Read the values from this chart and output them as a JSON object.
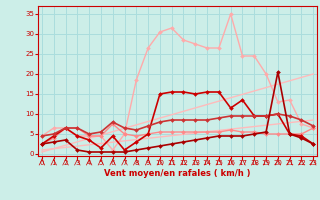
{
  "background_color": "#cceee8",
  "grid_color": "#aadddd",
  "xlabel": "Vent moyen/en rafales ( km/h )",
  "xlabel_color": "#cc0000",
  "tick_color": "#cc0000",
  "ylim": [
    -0.5,
    37
  ],
  "xlim": [
    -0.3,
    23.3
  ],
  "yticks": [
    0,
    5,
    10,
    15,
    20,
    25,
    30,
    35
  ],
  "xticks": [
    0,
    1,
    2,
    3,
    4,
    5,
    6,
    7,
    8,
    9,
    10,
    11,
    12,
    13,
    14,
    15,
    16,
    17,
    18,
    19,
    20,
    21,
    22,
    23
  ],
  "lines": [
    {
      "x": [
        0,
        23
      ],
      "y": [
        0.5,
        20.0
      ],
      "color": "#ffbbbb",
      "lw": 1.0,
      "marker": null,
      "ls": "-"
    },
    {
      "x": [
        0,
        23
      ],
      "y": [
        1.0,
        8.5
      ],
      "color": "#ffbbbb",
      "lw": 1.0,
      "marker": null,
      "ls": "-"
    },
    {
      "x": [
        0,
        1,
        2,
        3,
        4,
        5,
        6,
        7,
        8,
        9,
        10,
        11,
        12,
        13,
        14,
        15,
        16,
        17,
        18,
        19,
        20,
        21,
        22,
        23
      ],
      "y": [
        4.5,
        6.5,
        6.5,
        4.5,
        4.5,
        4.5,
        1.0,
        5.0,
        18.5,
        26.5,
        30.5,
        31.5,
        28.5,
        27.5,
        26.5,
        26.5,
        35.0,
        24.5,
        24.5,
        20.0,
        13.0,
        13.5,
        7.5,
        6.5
      ],
      "color": "#ffaaaa",
      "lw": 1.0,
      "marker": "D",
      "markersize": 2.0,
      "ls": "-"
    },
    {
      "x": [
        0,
        1,
        2,
        3,
        4,
        5,
        6,
        7,
        8,
        9,
        10,
        11,
        12,
        13,
        14,
        15,
        16,
        17,
        18,
        19,
        20,
        21,
        22,
        23
      ],
      "y": [
        2.5,
        4.0,
        6.5,
        6.5,
        4.5,
        4.5,
        7.5,
        5.0,
        4.5,
        5.0,
        5.5,
        5.5,
        5.5,
        5.5,
        5.5,
        5.5,
        6.0,
        5.5,
        5.5,
        5.0,
        5.0,
        5.0,
        5.0,
        6.5
      ],
      "color": "#ff8888",
      "lw": 1.0,
      "marker": "D",
      "markersize": 2.0,
      "ls": "-"
    },
    {
      "x": [
        0,
        1,
        2,
        3,
        4,
        5,
        6,
        7,
        8,
        9,
        10,
        11,
        12,
        13,
        14,
        15,
        16,
        17,
        18,
        19,
        20,
        21,
        22,
        23
      ],
      "y": [
        2.5,
        4.5,
        6.5,
        4.5,
        3.5,
        1.5,
        4.5,
        1.0,
        3.0,
        5.0,
        15.0,
        15.5,
        15.5,
        15.0,
        15.5,
        15.5,
        11.5,
        13.5,
        9.5,
        9.5,
        10.0,
        5.0,
        4.5,
        2.5
      ],
      "color": "#cc0000",
      "lw": 1.2,
      "marker": "D",
      "markersize": 2.0,
      "ls": "-"
    },
    {
      "x": [
        0,
        1,
        2,
        3,
        4,
        5,
        6,
        7,
        8,
        9,
        10,
        11,
        12,
        13,
        14,
        15,
        16,
        17,
        18,
        19,
        20,
        21,
        22,
        23
      ],
      "y": [
        4.5,
        5.0,
        6.5,
        6.5,
        5.0,
        5.5,
        8.0,
        6.5,
        6.0,
        7.0,
        8.0,
        8.5,
        8.5,
        8.5,
        8.5,
        9.0,
        9.5,
        9.5,
        9.5,
        9.5,
        10.0,
        9.5,
        8.5,
        7.0
      ],
      "color": "#cc3333",
      "lw": 1.2,
      "marker": "D",
      "markersize": 2.0,
      "ls": "-"
    },
    {
      "x": [
        0,
        1,
        2,
        3,
        4,
        5,
        6,
        7,
        8,
        9,
        10,
        11,
        12,
        13,
        14,
        15,
        16,
        17,
        18,
        19,
        20,
        21,
        22,
        23
      ],
      "y": [
        2.5,
        3.0,
        3.5,
        1.0,
        0.5,
        0.5,
        0.5,
        0.5,
        1.0,
        1.5,
        2.0,
        2.5,
        3.0,
        3.5,
        4.0,
        4.5,
        4.5,
        4.5,
        5.0,
        5.5,
        20.5,
        5.0,
        4.0,
        2.5
      ],
      "color": "#aa0000",
      "lw": 1.2,
      "marker": "D",
      "markersize": 2.0,
      "ls": "-"
    }
  ]
}
